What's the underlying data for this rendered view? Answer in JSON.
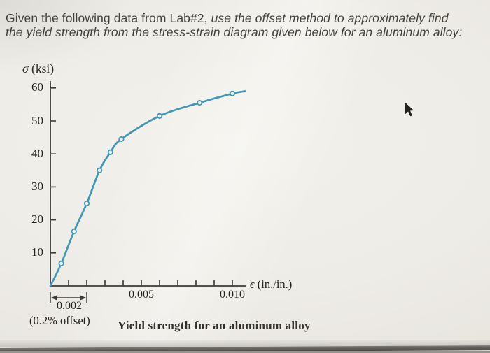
{
  "question": {
    "line1_regular": "Given the following data from Lab#2, ",
    "line1_italic": "use the offset method to approximately find",
    "line2": "the yield strength from the stress-strain diagram given below for an aluminum alloy:"
  },
  "chart_data": {
    "type": "line",
    "title": "Yield strength for an aluminum alloy",
    "y_axis": {
      "symbol": "σ",
      "unit": "(ksi)"
    },
    "x_axis": {
      "symbol": "ϵ",
      "unit": "(in./in.)"
    },
    "xlim": [
      0,
      0.011
    ],
    "ylim": [
      0,
      62
    ],
    "y_tick_values": [
      10,
      20,
      30,
      40,
      50,
      60
    ],
    "y_tick_labels": [
      "10",
      "20",
      "30",
      "40",
      "50",
      "60"
    ],
    "x_minor_tick_step": 0.001,
    "x_minor_tick_count": 10,
    "x_labeled_ticks": [
      {
        "value": 0.005,
        "label": "0.005"
      },
      {
        "value": 0.01,
        "label": "0.010"
      }
    ],
    "series": [
      {
        "name": "stress-strain-curve",
        "points": [
          {
            "strain": 0.0,
            "stress": 0.0,
            "marker": false
          },
          {
            "strain": 0.0006,
            "stress": 6.8,
            "marker": true
          },
          {
            "strain": 0.0013,
            "stress": 16.5,
            "marker": true
          },
          {
            "strain": 0.002,
            "stress": 25.0,
            "marker": true
          },
          {
            "strain": 0.0027,
            "stress": 35.0,
            "marker": true
          },
          {
            "strain": 0.0033,
            "stress": 40.5,
            "marker": true
          },
          {
            "strain": 0.0039,
            "stress": 44.5,
            "marker": true
          },
          {
            "strain": 0.006,
            "stress": 51.5,
            "marker": true
          },
          {
            "strain": 0.0082,
            "stress": 55.5,
            "marker": true
          },
          {
            "strain": 0.01,
            "stress": 58.3,
            "marker": true
          },
          {
            "strain": 0.0107,
            "stress": 59.0,
            "marker": false
          }
        ]
      }
    ],
    "annotations": {
      "offset_strain": 0.002,
      "offset_value_label": "0.002",
      "offset_note_label": "(0.2% offset)"
    },
    "colors": {
      "curve": "#3f97ba",
      "marker_fill": "#f2efe9",
      "axis": "#3c3b39",
      "text": "#26251f"
    },
    "grid": false,
    "legend": "none"
  }
}
